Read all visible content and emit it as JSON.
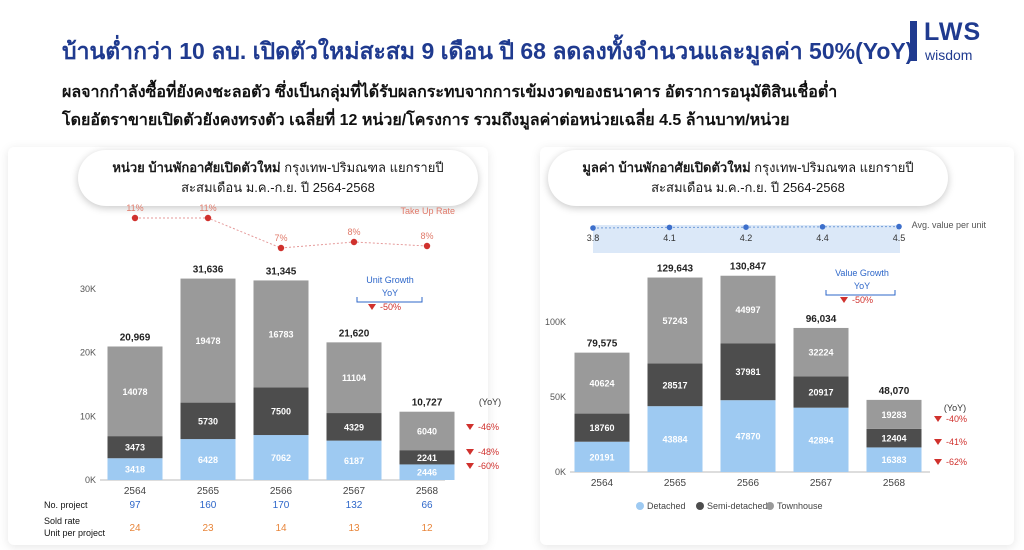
{
  "header": {
    "title": "บ้านต่ำกว่า 10 ลบ. เปิดตัวใหม่สะสม 9 เดือน ปี 68 ลดลงทั้งจำนวนและมูลค่า 50%(YoY)",
    "subtitle_1": "ผลจากกำลังซื้อที่ยังคงชะลอตัว ซึ่งเป็นกลุ่มที่ได้รับผลกระทบจากการเข้มงวดของธนาคาร อัตราการอนุมัติสินเชื่อต่ำ",
    "subtitle_2": "โดยอัตราขายเปิดตัวยังคงทรงตัว เฉลี่ยที่ 12 หน่วย/โครงการ รวมถึงมูลค่าต่อหน่วยเฉลี่ย 4.5 ล้านบาท/หน่วย"
  },
  "logo": {
    "brand": "LWS",
    "sub": "wisdom"
  },
  "colors": {
    "detached": "#9ecaf2",
    "semi": "#4d4d4d",
    "town": "#9a9a9a",
    "red": "#d0312d",
    "blue": "#2e67c9",
    "orange": "#e8853a"
  },
  "chart_data": [
    {
      "type": "bar",
      "title_bold": "หน่วย บ้านพักอาศัยเปิดตัวใหม่",
      "title_rest": " กรุงเทพ-ปริมณฑล แยกรายปี",
      "title_line2": "สะสมเดือน ม.ค.-ก.ย. ปี 2564-2568",
      "categories": [
        "2564",
        "2565",
        "2566",
        "2567",
        "2568"
      ],
      "ytick_labels": [
        "0K",
        "10K",
        "20K",
        "30K"
      ],
      "ytick_values": [
        0,
        10000,
        20000,
        30000
      ],
      "ylim": [
        0,
        34000
      ],
      "series": [
        {
          "key": "detached",
          "values": [
            3418,
            6428,
            7062,
            6187,
            2446
          ],
          "labels": [
            "3418",
            "6428",
            "7062",
            "6187",
            "2446"
          ]
        },
        {
          "key": "semi",
          "values": [
            3473,
            5730,
            7500,
            4329,
            2241
          ],
          "labels": [
            "3473",
            "5730",
            "7500",
            "4329",
            "2241"
          ]
        },
        {
          "key": "town",
          "values": [
            14078,
            19478,
            16783,
            11104,
            6040
          ],
          "labels": [
            "14078",
            "19478",
            "16783",
            "11104",
            "6040"
          ]
        }
      ],
      "totals": [
        20969,
        31636,
        31345,
        21620,
        10727
      ],
      "total_labels": [
        "20,969",
        "31,636",
        "31,345",
        "21,620",
        "10,727"
      ],
      "take_up": {
        "label": "Take Up Rate",
        "values": [
          11,
          11,
          7,
          8,
          8
        ],
        "labels": [
          "11%",
          "11%",
          "7%",
          "8%",
          "8%"
        ]
      },
      "growth": {
        "label": "Unit Growth",
        "yoy": "YoY",
        "value": "-50%"
      },
      "yoy_header": "(YoY)",
      "yoy_changes": [
        "-46%",
        "-48%",
        "-60%"
      ],
      "table": {
        "rows": [
          {
            "label": "No. project",
            "values": [
              "97",
              "160",
              "170",
              "132",
              "66"
            ]
          },
          {
            "label": "Sold rate\nUnit per project",
            "values": [
              "24",
              "23",
              "14",
              "13",
              "12"
            ]
          }
        ]
      }
    },
    {
      "type": "bar",
      "title_bold": "มูลค่า บ้านพักอาศัยเปิดตัวใหม่",
      "title_rest": " กรุงเทพ-ปริมณฑล แยกรายปี",
      "title_line2": "สะสมเดือน ม.ค.-ก.ย. ปี 2564-2568",
      "categories": [
        "2564",
        "2565",
        "2566",
        "2567",
        "2568"
      ],
      "ytick_labels": [
        "0K",
        "50K",
        "100K"
      ],
      "ytick_values": [
        0,
        50000,
        100000
      ],
      "ylim": [
        0,
        134000
      ],
      "series": [
        {
          "key": "detached",
          "values": [
            20191,
            43884,
            47870,
            42894,
            16383
          ],
          "labels": [
            "20191",
            "43884",
            "47870",
            "42894",
            "16383"
          ]
        },
        {
          "key": "semi",
          "values": [
            18760,
            28517,
            37981,
            20917,
            12404
          ],
          "labels": [
            "18760",
            "28517",
            "37981",
            "20917",
            "12404"
          ]
        },
        {
          "key": "town",
          "values": [
            40624,
            57243,
            44997,
            32224,
            19283
          ],
          "labels": [
            "40624",
            "57243",
            "44997",
            "32224",
            "19283"
          ]
        }
      ],
      "totals": [
        79575,
        129643,
        130847,
        96034,
        48070
      ],
      "total_labels": [
        "79,575",
        "129,643",
        "130,847",
        "96,034",
        "48,070"
      ],
      "avg_value": {
        "label": "Avg. value per unit",
        "values": [
          3.8,
          4.1,
          4.2,
          4.4,
          4.5
        ],
        "labels": [
          "3.8",
          "4.1",
          "4.2",
          "4.4",
          "4.5"
        ]
      },
      "growth": {
        "label": "Value Growth",
        "yoy": "YoY",
        "value": "-50%"
      },
      "yoy_header": "(YoY)",
      "yoy_changes": [
        "-40%",
        "-41%",
        "-62%"
      ],
      "legend": [
        "Detached",
        "Semi-detached",
        "Townhouse"
      ],
      "legend_position": "bottom"
    }
  ]
}
